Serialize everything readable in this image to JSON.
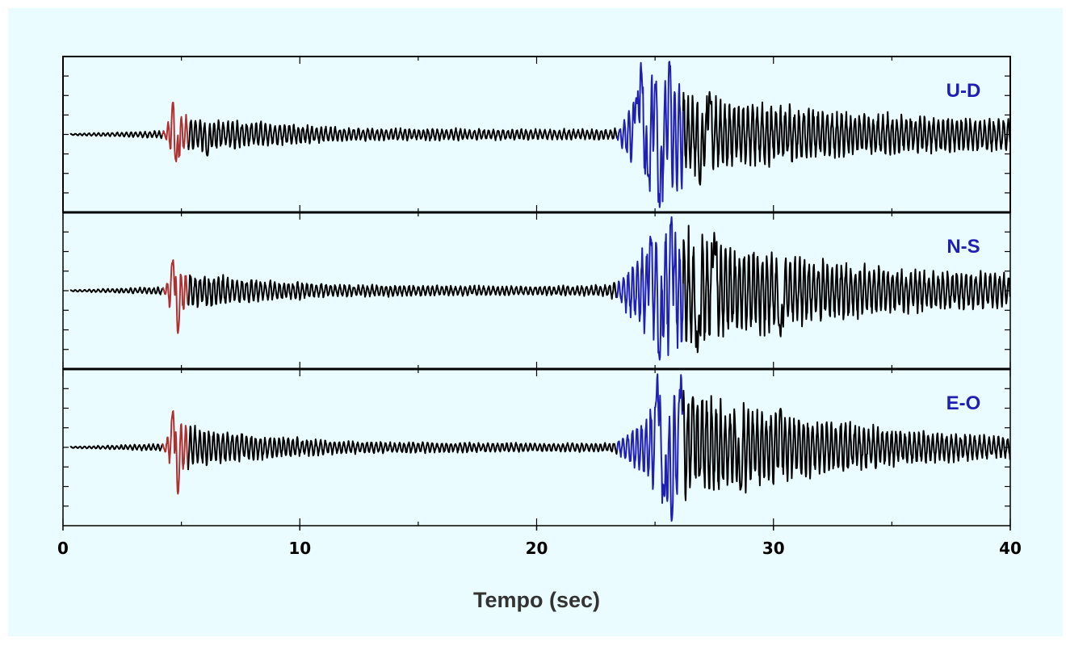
{
  "chart_data": {
    "type": "line",
    "title": "",
    "xlabel": "Tempo (sec)",
    "ylabel": "",
    "xlim": [
      0,
      40
    ],
    "xticks": [
      0,
      10,
      20,
      30,
      40
    ],
    "grid": false,
    "legend": "none",
    "colors": {
      "background": "#eafcff",
      "p_wave": "#b03030",
      "s_wave": "#1f1fb4",
      "trace": "#000000",
      "label": "#1f1fb4"
    },
    "phase_windows": {
      "p_wave": [
        4.2,
        5.3
      ],
      "s_wave": [
        23.4,
        26.2
      ]
    },
    "series": [
      {
        "name": "U-D",
        "time_range": [
          0.3,
          40
        ],
        "envelope": {
          "t": [
            0.3,
            4.3,
            4.7,
            5.2,
            6.0,
            9.0,
            12.0,
            20.0,
            23.0,
            23.5,
            24.5,
            25.3,
            26.5,
            28.0,
            32.0,
            36.0,
            40.0
          ],
          "a": [
            0.02,
            0.1,
            0.85,
            0.5,
            0.42,
            0.3,
            0.18,
            0.14,
            0.14,
            0.2,
            1.6,
            1.9,
            1.1,
            0.9,
            0.65,
            0.5,
            0.45
          ]
        },
        "peaks": [
          {
            "t": 4.65,
            "a": 0.85
          },
          {
            "t": 4.78,
            "a": -0.7
          },
          {
            "t": 6.1,
            "a": -0.55
          },
          {
            "t": 24.2,
            "a": 0.95
          },
          {
            "t": 24.4,
            "a": 1.85
          },
          {
            "t": 24.7,
            "a": -1.1
          },
          {
            "t": 25.0,
            "a": 1.3
          },
          {
            "t": 25.2,
            "a": -1.9
          },
          {
            "t": 25.6,
            "a": 1.9
          },
          {
            "t": 26.9,
            "a": -1.3
          },
          {
            "t": 27.3,
            "a": 1.1
          }
        ]
      },
      {
        "name": "N-S",
        "time_range": [
          0.3,
          40
        ],
        "envelope": {
          "t": [
            0.3,
            4.3,
            4.7,
            5.2,
            6.0,
            9.0,
            12.0,
            20.0,
            23.0,
            23.5,
            24.5,
            25.3,
            26.5,
            28.0,
            32.0,
            36.0,
            40.0
          ],
          "a": [
            0.02,
            0.1,
            0.85,
            0.5,
            0.45,
            0.25,
            0.16,
            0.12,
            0.15,
            0.3,
            1.2,
            1.8,
            1.6,
            1.3,
            0.8,
            0.55,
            0.5
          ]
        },
        "peaks": [
          {
            "t": 4.65,
            "a": 0.8
          },
          {
            "t": 4.85,
            "a": -1.1
          },
          {
            "t": 25.2,
            "a": -1.8
          },
          {
            "t": 25.7,
            "a": 1.9
          },
          {
            "t": 24.8,
            "a": 1.4
          },
          {
            "t": 26.8,
            "a": -1.6
          },
          {
            "t": 27.5,
            "a": 1.5
          },
          {
            "t": 30.3,
            "a": -1.2
          }
        ]
      },
      {
        "name": "E-O",
        "time_range": [
          0.3,
          40
        ],
        "envelope": {
          "t": [
            0.3,
            4.3,
            4.7,
            5.2,
            6.0,
            9.0,
            12.0,
            20.0,
            23.0,
            23.5,
            24.5,
            25.3,
            26.5,
            28.0,
            32.0,
            36.0,
            40.0
          ],
          "a": [
            0.02,
            0.1,
            0.95,
            0.6,
            0.5,
            0.3,
            0.16,
            0.12,
            0.12,
            0.2,
            0.8,
            1.7,
            1.5,
            1.2,
            0.75,
            0.45,
            0.3
          ]
        },
        "peaks": [
          {
            "t": 4.65,
            "a": 0.95
          },
          {
            "t": 4.85,
            "a": -1.2
          },
          {
            "t": 25.1,
            "a": 1.9
          },
          {
            "t": 25.4,
            "a": -1.3
          },
          {
            "t": 25.7,
            "a": -1.9
          },
          {
            "t": 26.1,
            "a": 1.9
          },
          {
            "t": 26.6,
            "a": 1.3
          },
          {
            "t": 28.6,
            "a": -1.1
          },
          {
            "t": 30.3,
            "a": 1.0
          }
        ]
      }
    ]
  }
}
